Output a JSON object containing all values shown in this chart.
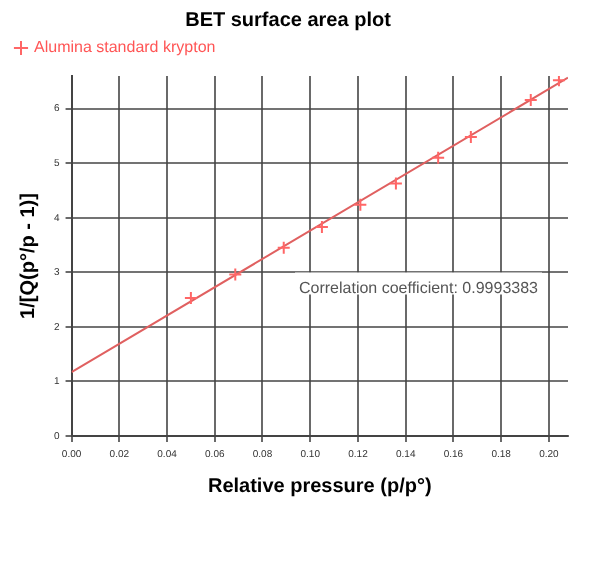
{
  "chart_data": {
    "type": "scatter",
    "title": "BET surface area plot",
    "xlabel": "Relative pressure (p/p°)",
    "ylabel": "1/[Q(p°/p - 1)]",
    "xlim": [
      0,
      0.208
    ],
    "xticks": [
      {
        "value": 0,
        "label": "0.00"
      },
      {
        "value": 0.02,
        "label": "0.02"
      },
      {
        "value": 0.04,
        "label": "0.04"
      },
      {
        "value": 0.06,
        "label": "0.06"
      },
      {
        "value": 0.08,
        "label": "0.08"
      },
      {
        "value": 0.1,
        "label": "0.10"
      },
      {
        "value": 0.12,
        "label": "0.12"
      },
      {
        "value": 0.14,
        "label": "0.14"
      },
      {
        "value": 0.16,
        "label": "0.16"
      },
      {
        "value": 0.18,
        "label": "0.18"
      },
      {
        "value": 0.2,
        "label": "0.20"
      }
    ],
    "ylim": [
      0,
      6.6
    ],
    "yticks": [
      0,
      1,
      2,
      3,
      4,
      5,
      6
    ],
    "grid": true,
    "legend": "top left",
    "annotations": [
      "Correlation coefficient: 0.9993383"
    ],
    "series": [
      {
        "name": "Alumina standard krypton",
        "marker": "cross",
        "color": "#ff6666",
        "x": [
          0.05,
          0.0686,
          0.0889,
          0.1049,
          0.121,
          0.1359,
          0.1536,
          0.1673,
          0.1924,
          0.2042
        ],
        "values": [
          2.53,
          2.96,
          3.45,
          3.83,
          4.24,
          4.63,
          5.1,
          5.48,
          6.16,
          6.52
        ]
      },
      {
        "type": "line",
        "marker": "none",
        "color": "#e06060",
        "x": [
          0,
          0.208
        ],
        "values": [
          1.17,
          6.57
        ]
      }
    ]
  }
}
